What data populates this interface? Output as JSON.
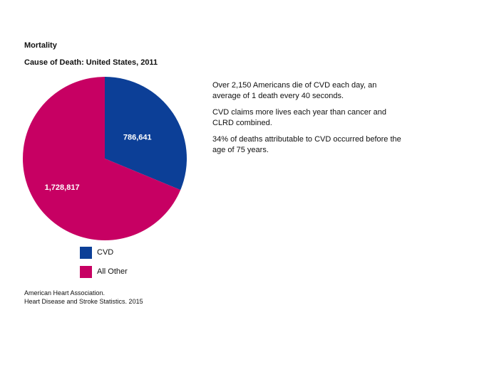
{
  "header": {
    "title": "Mortality",
    "subtitle": "Cause of Death: United States, 2011"
  },
  "notes": [
    "Over 2,150 Americans die of CVD each day, an average of 1 death every 40 seconds.",
    "CVD claims more lives each year than cancer and CLRD combined.",
    "34% of deaths attributable to CVD occurred before the age of 75 years."
  ],
  "source": {
    "line1": "American Heart Association.",
    "line2": "Heart Disease and Stroke Statistics. 2015"
  },
  "chart_data": {
    "type": "pie",
    "title": "Cause of Death: United States, 2011",
    "categories": [
      "CVD",
      "All Other"
    ],
    "values": [
      786641,
      1728817
    ],
    "value_labels": [
      "786,641",
      "1,728,817"
    ],
    "colors": [
      "#0c3f97",
      "#c70063"
    ],
    "legend_position": "bottom",
    "start": "12 o'clock, clockwise"
  }
}
